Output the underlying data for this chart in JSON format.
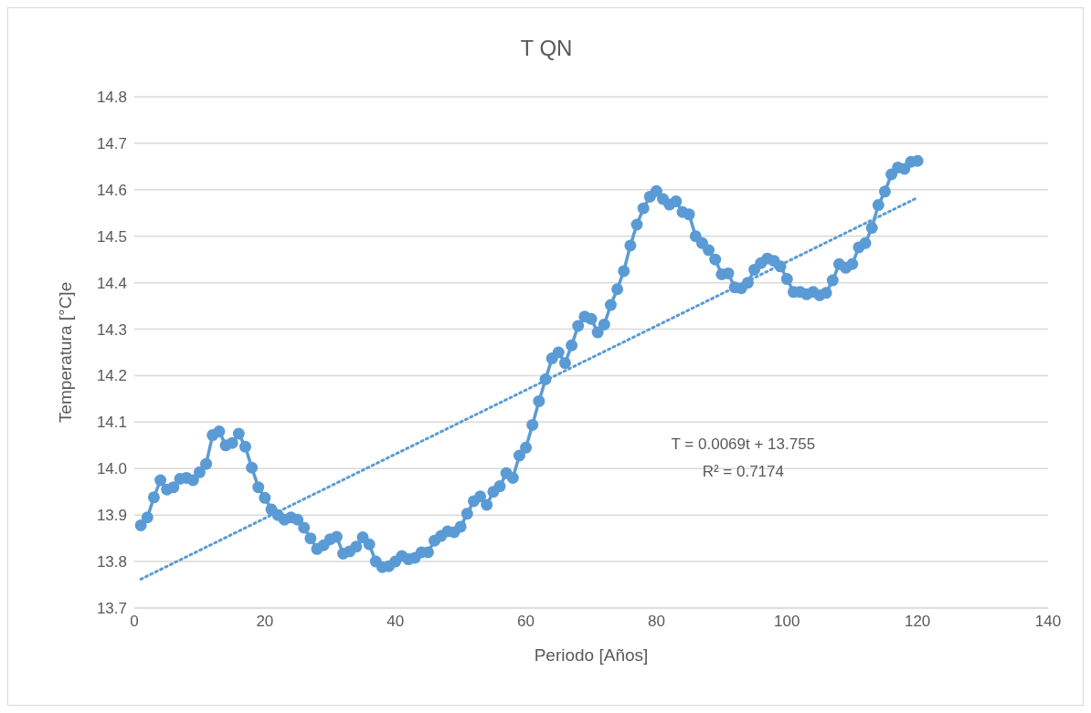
{
  "chart_data": {
    "type": "line",
    "title": "T QN",
    "xlabel": "Periodo [Años]",
    "ylabel": "Temperatura [°C]e",
    "x": [
      1,
      2,
      3,
      4,
      5,
      6,
      7,
      8,
      9,
      10,
      11,
      12,
      13,
      14,
      15,
      16,
      17,
      18,
      19,
      20,
      21,
      22,
      23,
      24,
      25,
      26,
      27,
      28,
      29,
      30,
      31,
      32,
      33,
      34,
      35,
      36,
      37,
      38,
      39,
      40,
      41,
      42,
      43,
      44,
      45,
      46,
      47,
      48,
      49,
      50,
      51,
      52,
      53,
      54,
      55,
      56,
      57,
      58,
      59,
      60,
      61,
      62,
      63,
      64,
      65,
      66,
      67,
      68,
      69,
      70,
      71,
      72,
      73,
      74,
      75,
      76,
      77,
      78,
      79,
      80,
      81,
      82,
      83,
      84,
      85,
      86,
      87,
      88,
      89,
      90,
      91,
      92,
      93,
      94,
      95,
      96,
      97,
      98,
      99,
      100,
      101,
      102,
      103,
      104,
      105,
      106,
      107,
      108,
      109,
      110,
      111,
      112,
      113,
      114,
      115,
      116,
      117,
      118,
      119,
      120
    ],
    "series": [
      {
        "color": "#5b9bd5",
        "marker": "circle",
        "line_style": "solid",
        "values": [
          13.878,
          13.895,
          13.938,
          13.975,
          13.955,
          13.96,
          13.978,
          13.98,
          13.975,
          13.992,
          14.01,
          14.072,
          14.08,
          14.05,
          14.055,
          14.075,
          14.047,
          14.002,
          13.96,
          13.937,
          13.912,
          13.9,
          13.89,
          13.895,
          13.89,
          13.873,
          13.85,
          13.827,
          13.835,
          13.848,
          13.853,
          13.817,
          13.822,
          13.832,
          13.852,
          13.837,
          13.8,
          13.788,
          13.79,
          13.8,
          13.812,
          13.805,
          13.808,
          13.82,
          13.82,
          13.845,
          13.855,
          13.865,
          13.863,
          13.875,
          13.903,
          13.93,
          13.94,
          13.922,
          13.95,
          13.962,
          13.99,
          13.98,
          14.028,
          14.045,
          14.094,
          14.145,
          14.192,
          14.237,
          14.25,
          14.227,
          14.265,
          14.307,
          14.327,
          14.322,
          14.293,
          14.31,
          14.352,
          14.386,
          14.425,
          14.48,
          14.525,
          14.56,
          14.585,
          14.597,
          14.58,
          14.568,
          14.575,
          14.552,
          14.547,
          14.5,
          14.485,
          14.47,
          14.45,
          14.418,
          14.42,
          14.39,
          14.388,
          14.4,
          14.428,
          14.442,
          14.452,
          14.447,
          14.435,
          14.408,
          14.38,
          14.38,
          14.375,
          14.38,
          14.373,
          14.378,
          14.405,
          14.44,
          14.432,
          14.44,
          14.476,
          14.485,
          14.518,
          14.567,
          14.596,
          14.633,
          14.648,
          14.645,
          14.66,
          14.662
        ]
      },
      {
        "color": "#5b9bd5",
        "marker": "none",
        "line_style": "dotted",
        "x": [
          1,
          120
        ],
        "values": [
          13.762,
          14.583
        ]
      }
    ],
    "annotations": [
      "T = 0.0069t + 13.755",
      "R² = 0.7174"
    ],
    "xlim": [
      0,
      140
    ],
    "xticks": [
      0,
      20,
      40,
      60,
      80,
      100,
      120,
      140
    ],
    "ylim": [
      13.7,
      14.8
    ],
    "yticks": [
      13.7,
      13.8,
      13.9,
      {
        "value": 14.0,
        "label": "14.0"
      },
      14.1,
      14.2,
      14.3,
      14.4,
      14.5,
      14.6,
      14.7,
      14.8
    ],
    "grid": "y"
  }
}
